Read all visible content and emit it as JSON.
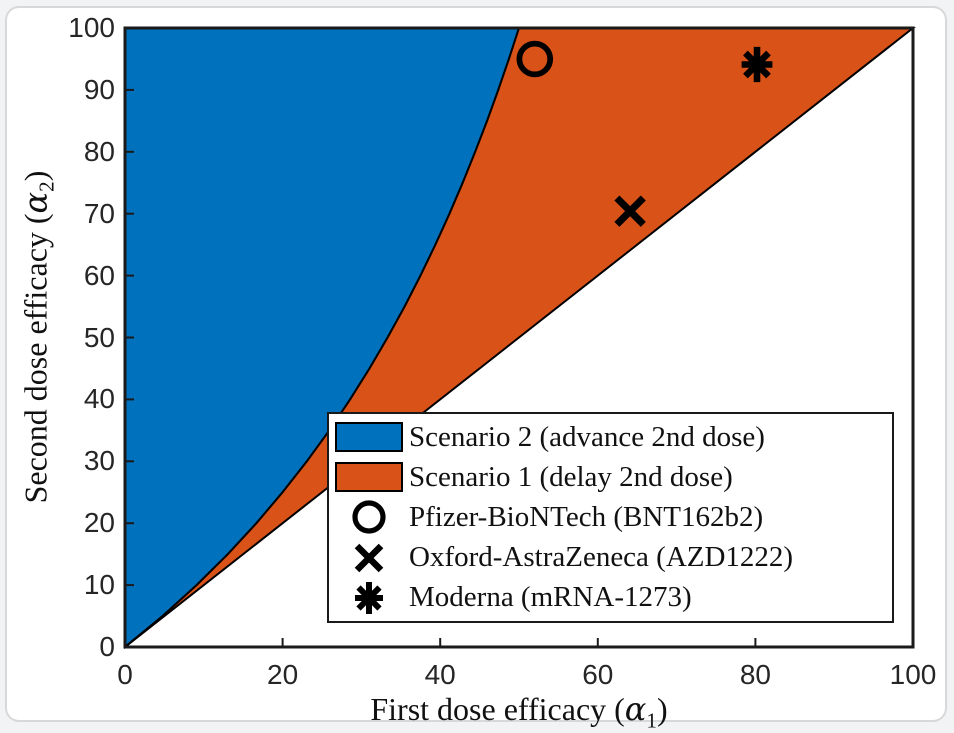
{
  "chart_data": {
    "type": "area",
    "title": "",
    "xlabel": {
      "prefix": "First dose efficacy (",
      "symbol": "α",
      "subscript": "1",
      "suffix": ")"
    },
    "ylabel": {
      "prefix": "Second dose efficacy (",
      "symbol": "α",
      "subscript": "2",
      "suffix": ")"
    },
    "xlim": [
      0,
      100
    ],
    "ylim": [
      0,
      100
    ],
    "x_ticks": [
      0,
      20,
      40,
      60,
      80,
      100
    ],
    "y_ticks": [
      0,
      10,
      20,
      30,
      40,
      50,
      60,
      70,
      80,
      90,
      100
    ],
    "grid": false,
    "frame_color": "#1a1a1a",
    "regions": [
      {
        "key": "scenario2",
        "label": "Scenario 2 (advance 2nd dose)",
        "color": "#0072BD",
        "bounds": "left of curve alpha2 = 100*alpha1/(100-alpha1), from x=0 up to top edge y=100"
      },
      {
        "key": "scenario1",
        "label": "Scenario 1 (delay 2nd dose)",
        "color": "#D95319",
        "bounds": "between curve alpha2 = 100*alpha1/(100-alpha1) and diagonal line alpha2 = alpha1"
      }
    ],
    "boundary_curve": {
      "formula": "alpha2 = 100*alpha1/(100-alpha1)",
      "points": [
        [
          0,
          0
        ],
        [
          4.76,
          5
        ],
        [
          9.09,
          10
        ],
        [
          13.04,
          15
        ],
        [
          16.67,
          20
        ],
        [
          20.0,
          25
        ],
        [
          23.08,
          30
        ],
        [
          25.93,
          35
        ],
        [
          28.57,
          40
        ],
        [
          31.03,
          45
        ],
        [
          33.33,
          50
        ],
        [
          35.48,
          55
        ],
        [
          37.5,
          60
        ],
        [
          39.39,
          65
        ],
        [
          41.18,
          70
        ],
        [
          42.86,
          75
        ],
        [
          44.44,
          80
        ],
        [
          45.95,
          85
        ],
        [
          47.37,
          90
        ],
        [
          48.72,
          95
        ],
        [
          50.0,
          100
        ]
      ]
    },
    "diagonal_line": {
      "from": [
        0,
        0
      ],
      "to": [
        100,
        100
      ],
      "meaning": "alpha2 = alpha1"
    },
    "markers": [
      {
        "key": "pfizer",
        "shape": "circle",
        "x": 52,
        "y": 95,
        "label": "Pfizer-BioNTech (BNT162b2)"
      },
      {
        "key": "oxford",
        "shape": "x",
        "x": 64.1,
        "y": 70.4,
        "label": "Oxford-AstraZeneca (AZD1222)"
      },
      {
        "key": "moderna",
        "shape": "asterisk",
        "x": 80.2,
        "y": 94.1,
        "label": "Moderna (mRNA-1273)"
      }
    ],
    "legend": {
      "position": "lower right inside plot",
      "entries": [
        {
          "key": "scenario2",
          "type": "patch",
          "color": "#0072BD",
          "label": "Scenario 2 (advance 2nd dose)"
        },
        {
          "key": "scenario1",
          "type": "patch",
          "color": "#D95319",
          "label": "Scenario 1 (delay 2nd dose)"
        },
        {
          "key": "pfizer",
          "type": "marker",
          "shape": "circle",
          "label": "Pfizer-BioNTech (BNT162b2)"
        },
        {
          "key": "oxford",
          "type": "marker",
          "shape": "x",
          "label": "Oxford-AstraZeneca (AZD1222)"
        },
        {
          "key": "moderna",
          "type": "marker",
          "shape": "asterisk",
          "label": "Moderna (mRNA-1273)"
        }
      ]
    }
  }
}
